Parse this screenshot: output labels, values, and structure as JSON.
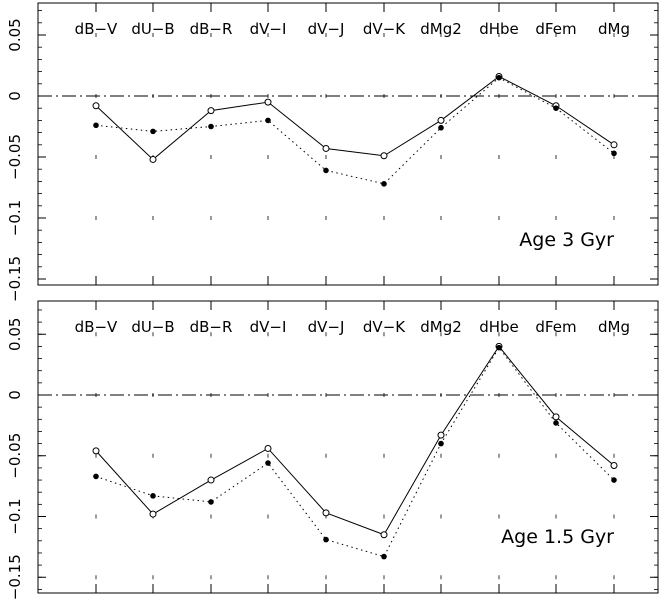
{
  "chart_data": [
    {
      "type": "line",
      "annotation": "Age 3 Gyr",
      "categories": [
        "dB−V",
        "dU−B",
        "dB−R",
        "dV−I",
        "dV−J",
        "dV−K",
        "dMg2",
        "dHbe",
        "dFem",
        "dMg"
      ],
      "ylim": [
        -0.16,
        0.075
      ],
      "yticks": [
        0.05,
        0,
        -0.05,
        -0.1,
        -0.15
      ],
      "ytick_labels": [
        "0.05",
        "0",
        "−0.05",
        "−0.1",
        "−0.15"
      ],
      "reference_line": 0,
      "series": [
        {
          "style": "solid-open-circles",
          "values": [
            -0.008,
            -0.052,
            -0.012,
            -0.005,
            -0.043,
            -0.049,
            -0.02,
            0.016,
            -0.008,
            -0.04
          ]
        },
        {
          "style": "dotted-filled-circles",
          "values": [
            -0.024,
            -0.029,
            -0.025,
            -0.02,
            -0.061,
            -0.072,
            -0.026,
            0.015,
            -0.01,
            -0.047
          ]
        }
      ]
    },
    {
      "type": "line",
      "annotation": "Age 1.5 Gyr",
      "categories": [
        "dB−V",
        "dU−B",
        "dB−R",
        "dV−I",
        "dV−J",
        "dV−K",
        "dMg2",
        "dHbe",
        "dFem",
        "dMg"
      ],
      "ylim": [
        -0.16,
        0.075
      ],
      "yticks": [
        0.05,
        0,
        -0.05,
        -0.1,
        -0.15
      ],
      "ytick_labels": [
        "0.05",
        "0",
        "−0.05",
        "−0.1",
        "−0.15"
      ],
      "reference_line": 0,
      "series": [
        {
          "style": "solid-open-circles",
          "values": [
            -0.046,
            -0.098,
            -0.07,
            -0.044,
            -0.097,
            -0.115,
            -0.033,
            0.04,
            -0.018,
            -0.058
          ]
        },
        {
          "style": "dotted-filled-circles",
          "values": [
            -0.067,
            -0.083,
            -0.088,
            -0.056,
            -0.119,
            -0.133,
            -0.04,
            0.039,
            -0.023,
            -0.07
          ]
        }
      ]
    }
  ]
}
